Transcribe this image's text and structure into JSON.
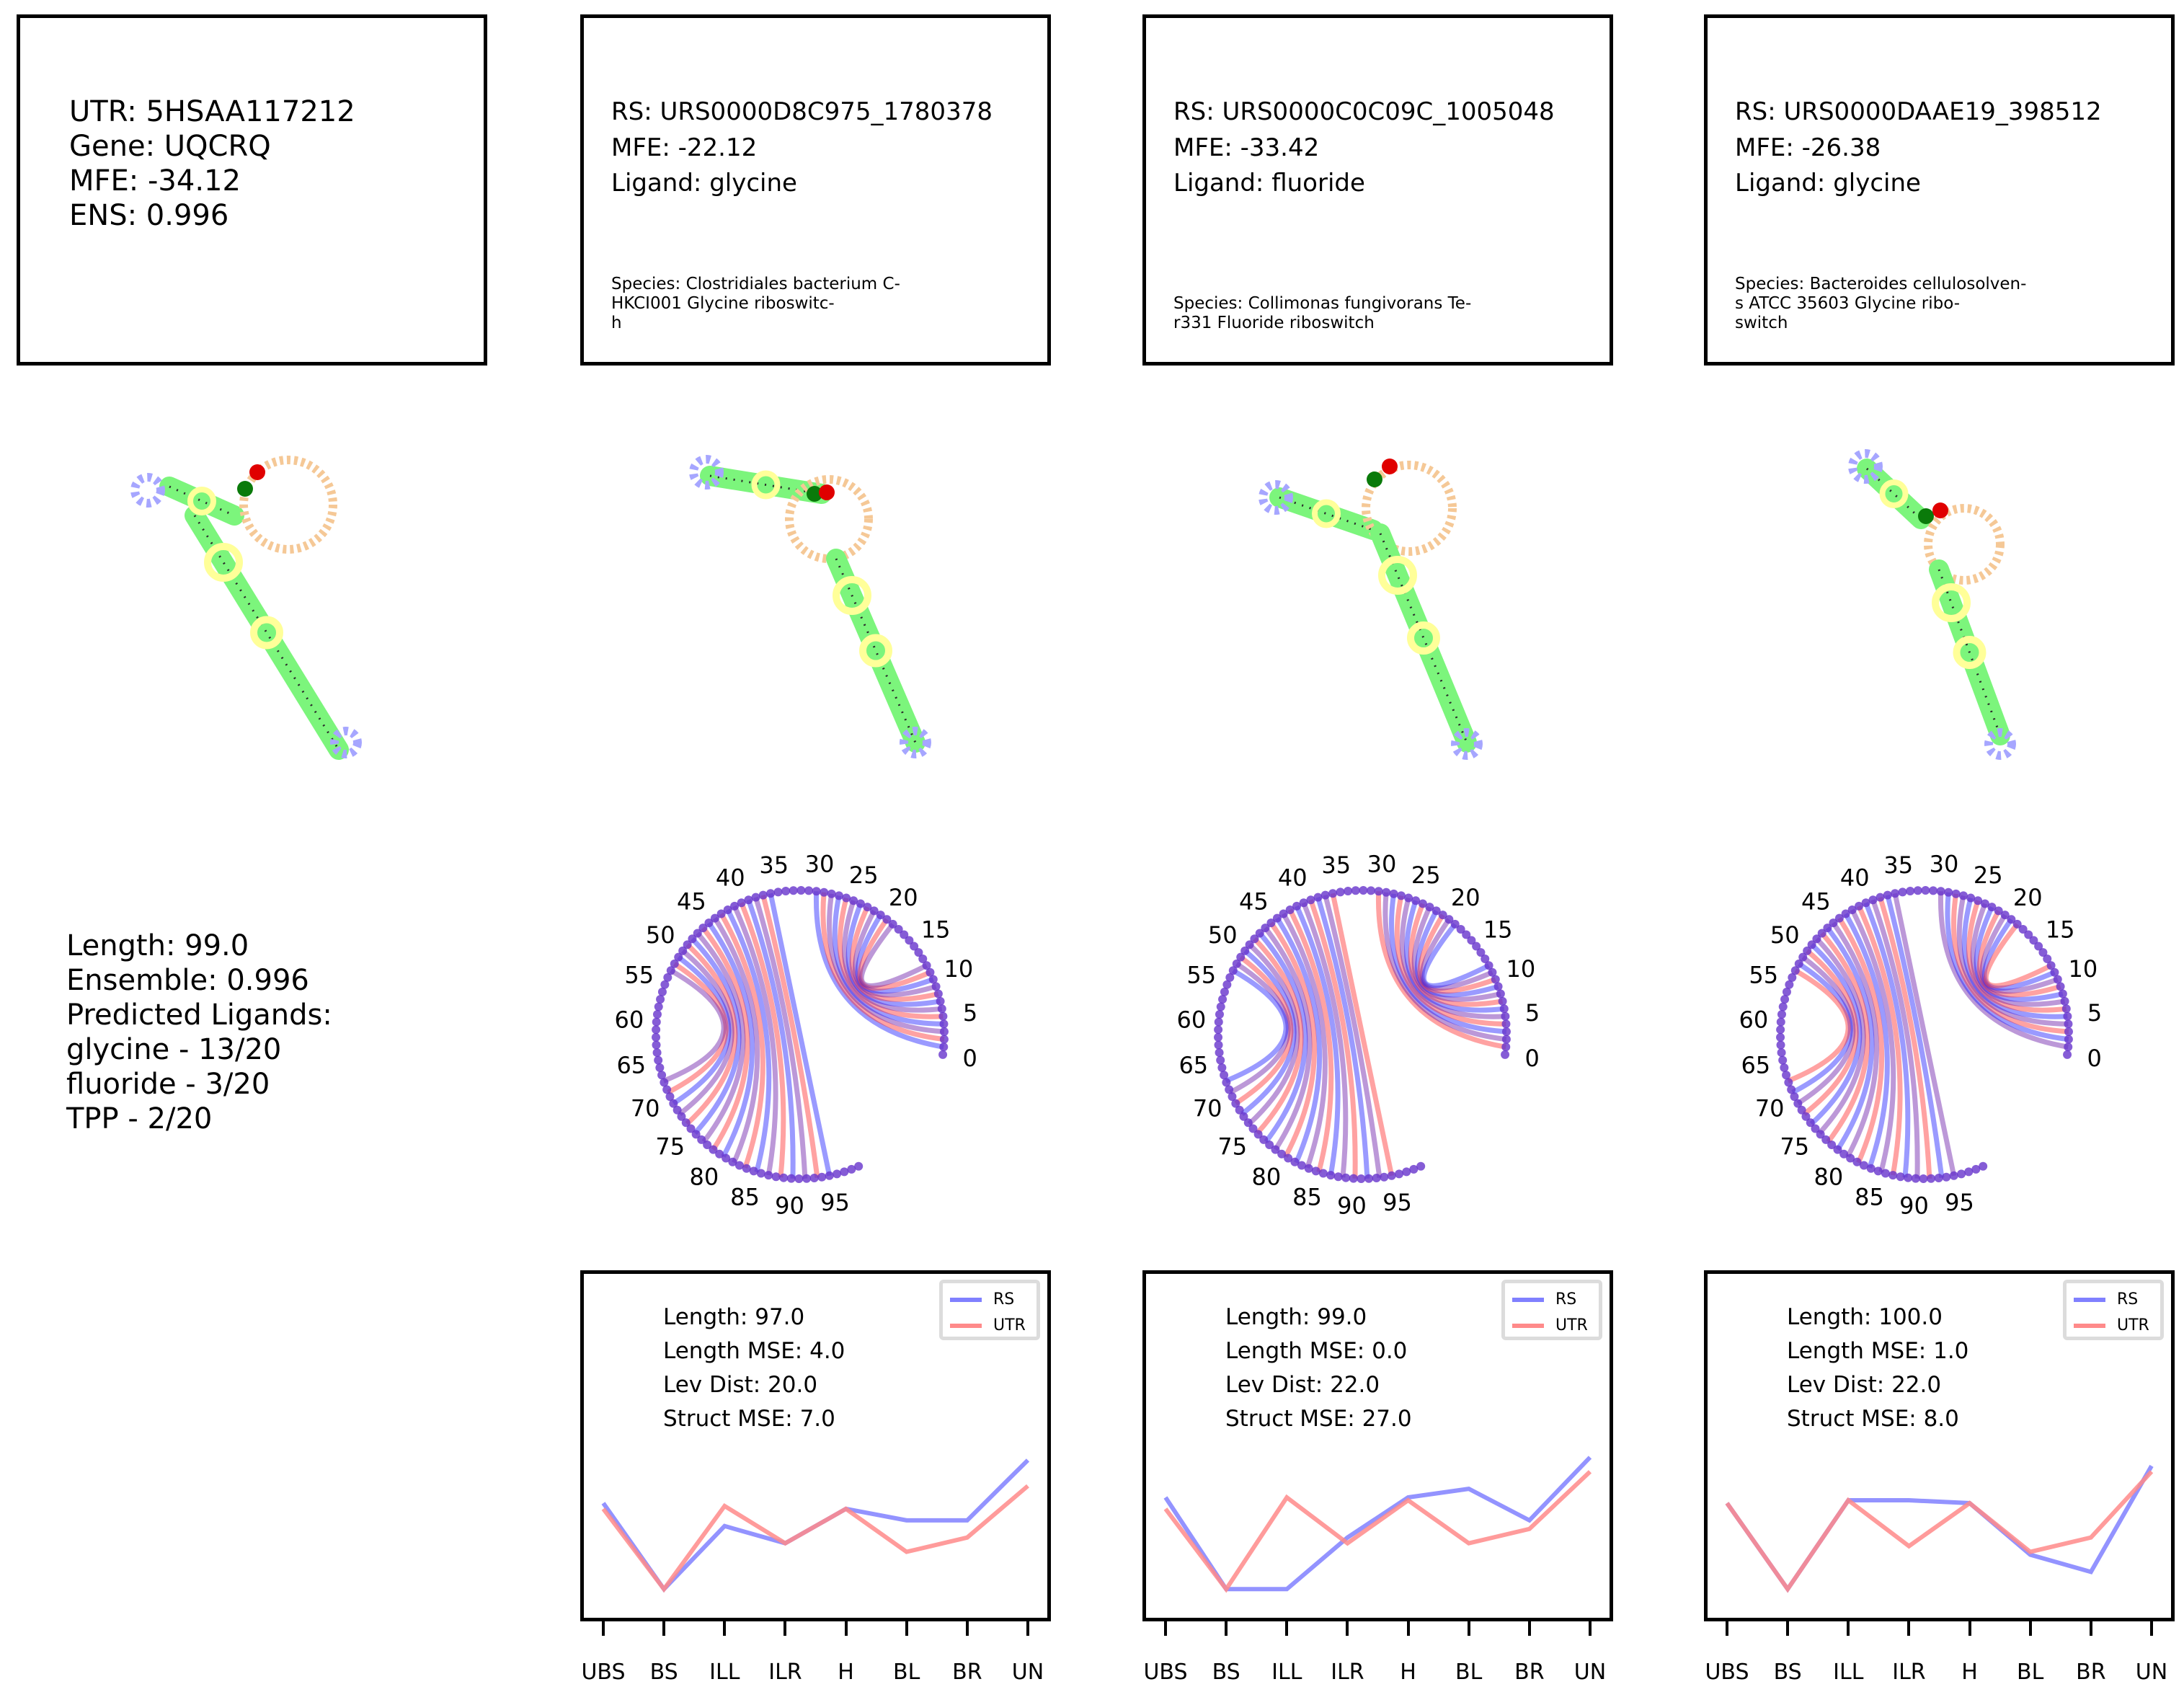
{
  "utr_panel": {
    "lines": [
      "UTR: 5HSAA117212",
      "Gene: UQCRQ",
      "MFE: -34.12",
      "ENS: 0.996"
    ]
  },
  "rs_panels": [
    {
      "id": "URS0000D8C975_1780378",
      "lines": [
        "RS: URS0000D8C975_1780378",
        "MFE: -22.12",
        "Ligand: glycine"
      ],
      "species": [
        "Species: Clostridiales bacterium C-",
        "HKCI001 Glycine riboswitc-",
        "h"
      ]
    },
    {
      "id": "URS0000C0C09C_1005048",
      "lines": [
        "RS: URS0000C0C09C_1005048",
        "MFE: -33.42",
        "Ligand: fluoride"
      ],
      "species": [
        "Species: Collimonas fungivorans Te-",
        "r331 Fluoride riboswitch"
      ]
    },
    {
      "id": "URS0000DAAE19_398512",
      "lines": [
        "RS: URS0000DAAE19_398512",
        "MFE: -26.38",
        "Ligand: glycine"
      ],
      "species": [
        "Species: Bacteroides cellulosolven-",
        "s ATCC 35603 Glycine ribo-",
        "switch"
      ]
    }
  ],
  "summary": {
    "lines": [
      "Length: 99.0",
      "Ensemble: 0.996",
      "Predicted Ligands:",
      "glycine - 13/20",
      "fluoride - 3/20",
      "TPP - 2/20"
    ]
  },
  "arc_labels": [
    "0",
    "5",
    "10",
    "15",
    "20",
    "25",
    "30",
    "35",
    "40",
    "45",
    "50",
    "55",
    "60",
    "65",
    "70",
    "75",
    "80",
    "85",
    "90",
    "95"
  ],
  "colors": {
    "rs_line": "#8080ff",
    "utr_line": "#ff8a8a",
    "stem": "#7cf57c",
    "hairpin": "#a6a6ff",
    "bulge": "#ffff99",
    "loop": "#f5c896",
    "start": "#0a7a0a",
    "end": "#e00000",
    "arc_blue": "#2020ff",
    "arc_red": "#ff3030",
    "arc_purple": "#6a1aa8"
  },
  "legend": {
    "rs": "RS",
    "utr": "UTR"
  },
  "chart_data": [
    {
      "type": "line",
      "categories": [
        "UBS",
        "BS",
        "ILL",
        "ILR",
        "H",
        "BL",
        "BR",
        "UN"
      ],
      "metrics": [
        "Length: 97.0",
        "Length MSE: 4.0",
        "Lev Dist: 20.0",
        "Struct MSE: 7.0"
      ],
      "series": [
        {
          "name": "RS",
          "values": [
            4,
            1,
            3.2,
            2.6,
            3.8,
            3.4,
            3.4,
            5.5
          ]
        },
        {
          "name": "UTR",
          "values": [
            3.8,
            1,
            3.9,
            2.6,
            3.8,
            2.3,
            2.8,
            4.6
          ]
        }
      ],
      "ylim": [
        0,
        12
      ]
    },
    {
      "type": "line",
      "categories": [
        "UBS",
        "BS",
        "ILL",
        "ILR",
        "H",
        "BL",
        "BR",
        "UN"
      ],
      "metrics": [
        "Length: 99.0",
        "Length MSE: 0.0",
        "Lev Dist: 22.0",
        "Struct MSE: 27.0"
      ],
      "series": [
        {
          "name": "RS",
          "values": [
            4.2,
            1,
            1,
            2.8,
            4.2,
            4.5,
            3.4,
            5.6
          ]
        },
        {
          "name": "UTR",
          "values": [
            3.8,
            1,
            4.2,
            2.6,
            4.1,
            2.6,
            3.1,
            5.1
          ]
        }
      ],
      "ylim": [
        0,
        12
      ]
    },
    {
      "type": "line",
      "categories": [
        "UBS",
        "BS",
        "ILL",
        "ILR",
        "H",
        "BL",
        "BR",
        "UN"
      ],
      "metrics": [
        "Length: 100.0",
        "Length MSE: 1.0",
        "Lev Dist: 22.0",
        "Struct MSE: 8.0"
      ],
      "series": [
        {
          "name": "RS",
          "values": [
            4,
            1,
            4.1,
            4.1,
            4,
            2.2,
            1.6,
            5.3
          ]
        },
        {
          "name": "UTR",
          "values": [
            4,
            1,
            4.1,
            2.5,
            4,
            2.3,
            2.8,
            5.1
          ]
        }
      ],
      "ylim": [
        0,
        12
      ]
    }
  ]
}
